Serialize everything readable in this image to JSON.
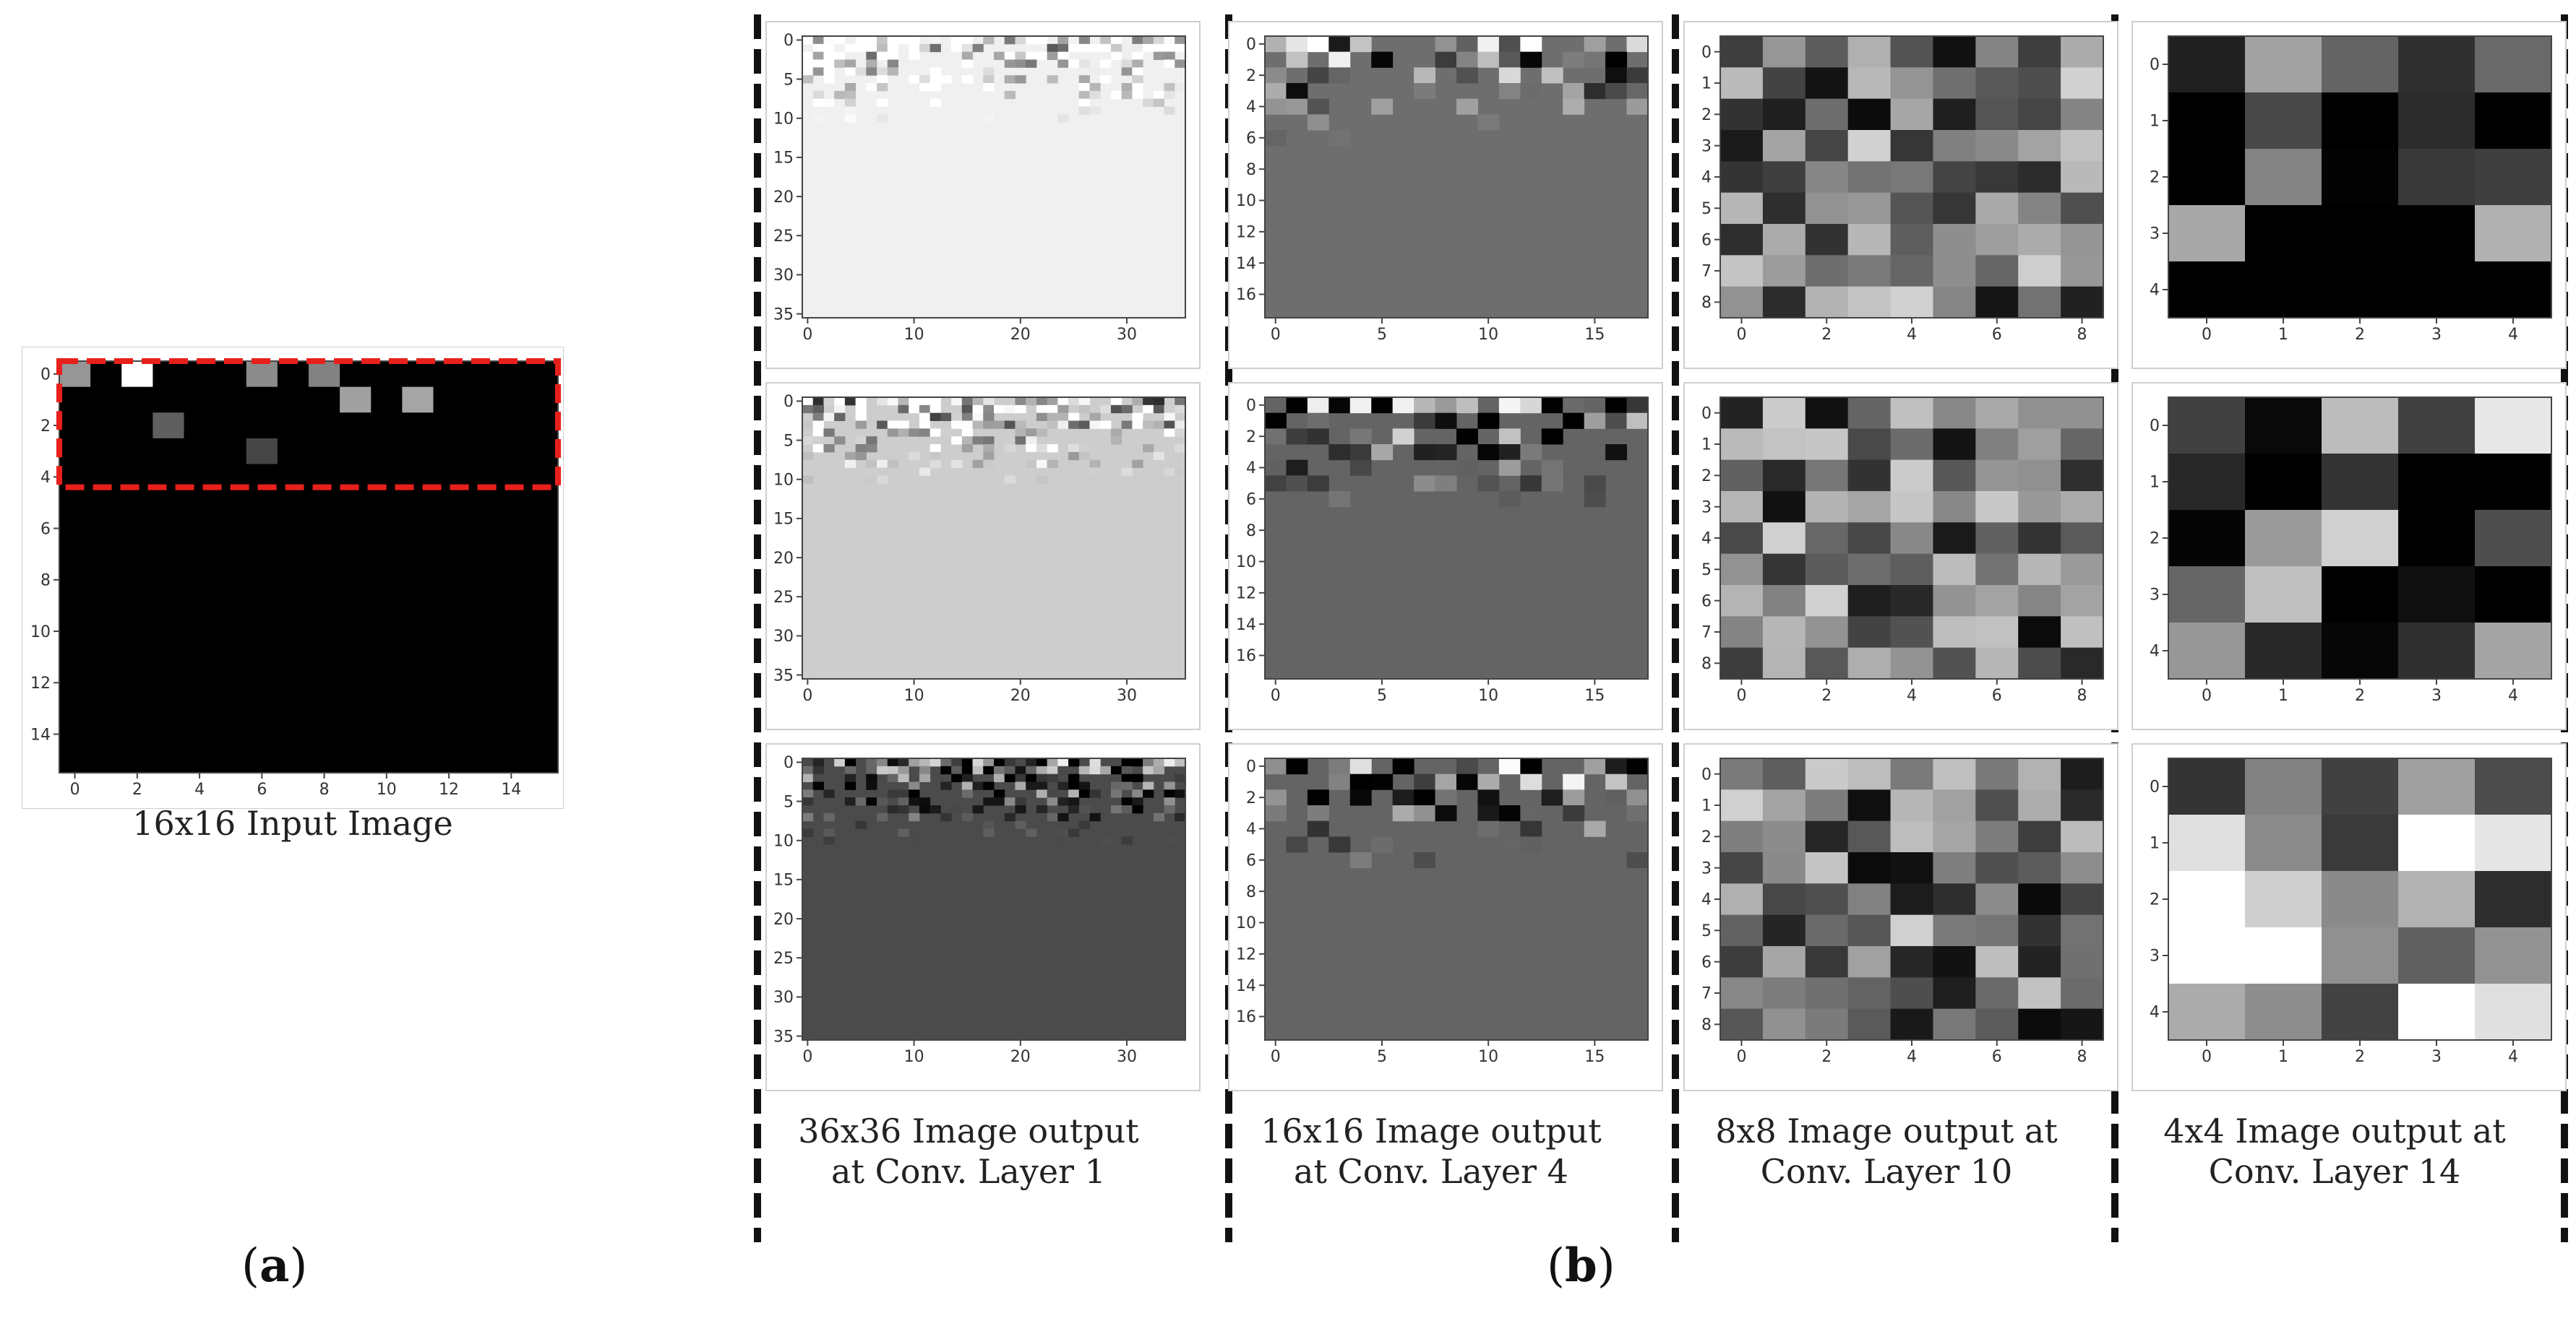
{
  "figure": {
    "part_a": {
      "label_open": "(",
      "label_letter": "a",
      "label_close": ")",
      "caption": "16x16 Input Image",
      "x_ticks": [
        "0",
        "2",
        "4",
        "6",
        "8",
        "10",
        "12",
        "14"
      ],
      "y_ticks": [
        "0",
        "2",
        "4",
        "6",
        "8",
        "10",
        "12",
        "14"
      ]
    },
    "part_b": {
      "label_open": "(",
      "label_letter": "b",
      "label_close": ")",
      "columns": [
        {
          "caption_line1": "36x36 Image output",
          "caption_line2": "at Conv. Layer 1",
          "x_ticks": [
            "0",
            "10",
            "20",
            "30"
          ],
          "y_ticks": [
            "0",
            "5",
            "10",
            "15",
            "20",
            "25",
            "30",
            "35"
          ]
        },
        {
          "caption_line1": "16x16 Image output",
          "caption_line2": "at Conv. Layer 4",
          "x_ticks": [
            "0",
            "5",
            "10",
            "15"
          ],
          "y_ticks": [
            "0",
            "2",
            "4",
            "6",
            "8",
            "10",
            "12",
            "14",
            "16"
          ]
        },
        {
          "caption_line1": "8x8 Image output at",
          "caption_line2": "Conv. Layer 10",
          "x_ticks": [
            "0",
            "2",
            "4",
            "6",
            "8"
          ],
          "y_ticks": [
            "0",
            "1",
            "2",
            "3",
            "4",
            "5",
            "6",
            "7",
            "8"
          ]
        },
        {
          "caption_line1": "4x4 Image output at",
          "caption_line2": "Conv. Layer 14",
          "x_ticks": [
            "0",
            "1",
            "2",
            "3",
            "4"
          ],
          "y_ticks": [
            "0",
            "1",
            "2",
            "3",
            "4"
          ]
        }
      ]
    },
    "colors": {
      "input_background": "#000000",
      "highlight_box": "#e8201c",
      "divider": "#111111"
    }
  }
}
